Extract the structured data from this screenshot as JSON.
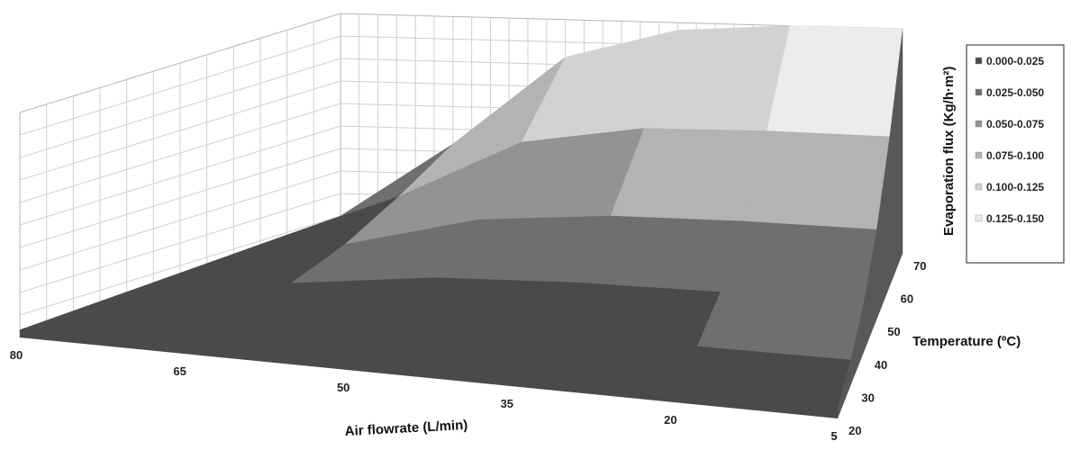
{
  "chart_data": {
    "type": "surface",
    "title": "",
    "xlabel": "Air flowrate (L/min)",
    "ylabel": "Temperature (ºC)",
    "zlabel": "Evaporation flux (Kg/h·m²)",
    "x_ticks": [
      "80",
      "65",
      "50",
      "35",
      "20",
      "5"
    ],
    "y_ticks": [
      "20",
      "30",
      "40",
      "50",
      "60",
      "70"
    ],
    "xlim": [
      80,
      5
    ],
    "ylim": [
      20,
      70
    ],
    "zlim": [
      0,
      0.15
    ],
    "grid": true,
    "legend_position": "right",
    "legend": [
      {
        "label": "0.000-0.025",
        "color": "#4a4a4a"
      },
      {
        "label": "0.025-0.050",
        "color": "#6f6f6f"
      },
      {
        "label": "0.050-0.075",
        "color": "#939393"
      },
      {
        "label": "0.075-0.100",
        "color": "#b3b3b3"
      },
      {
        "label": "0.100-0.125",
        "color": "#d2d2d2"
      },
      {
        "label": "0.125-0.150",
        "color": "#ececec"
      }
    ],
    "series": [
      {
        "x": 80,
        "values": [
          0.005,
          0.007,
          0.009,
          0.011,
          0.013,
          0.015
        ]
      },
      {
        "x": 65,
        "values": [
          0.006,
          0.01,
          0.017,
          0.028,
          0.045,
          0.065
        ]
      },
      {
        "x": 50,
        "values": [
          0.007,
          0.014,
          0.028,
          0.05,
          0.085,
          0.125
        ]
      },
      {
        "x": 35,
        "values": [
          0.008,
          0.016,
          0.032,
          0.058,
          0.098,
          0.145
        ]
      },
      {
        "x": 20,
        "values": [
          0.008,
          0.017,
          0.033,
          0.06,
          0.1,
          0.15
        ]
      },
      {
        "x": 5,
        "values": [
          0.008,
          0.017,
          0.033,
          0.06,
          0.1,
          0.15
        ]
      }
    ]
  }
}
